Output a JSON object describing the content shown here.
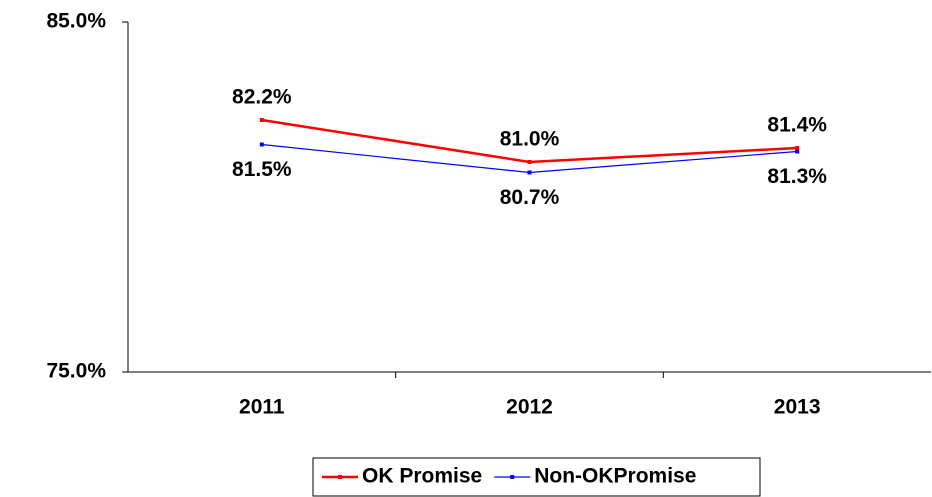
{
  "chart_data": {
    "type": "line",
    "categories": [
      "2011",
      "2012",
      "2013"
    ],
    "series": [
      {
        "name": "OK Promise",
        "color": "#ff0000",
        "values": [
          82.2,
          81.0,
          81.4
        ],
        "value_labels": [
          "82.2%",
          "81.0%",
          "81.4%"
        ]
      },
      {
        "name": "Non-OKPromise",
        "color": "#0000ff",
        "values": [
          81.5,
          80.7,
          81.3
        ],
        "value_labels": [
          "81.5%",
          "80.7%",
          "81.3%"
        ]
      }
    ],
    "ylim": [
      75,
      85
    ],
    "yticks": [
      {
        "value": 75,
        "label": "75.0%"
      },
      {
        "value": 85,
        "label": "85.0%"
      }
    ],
    "legend": "bottom"
  }
}
